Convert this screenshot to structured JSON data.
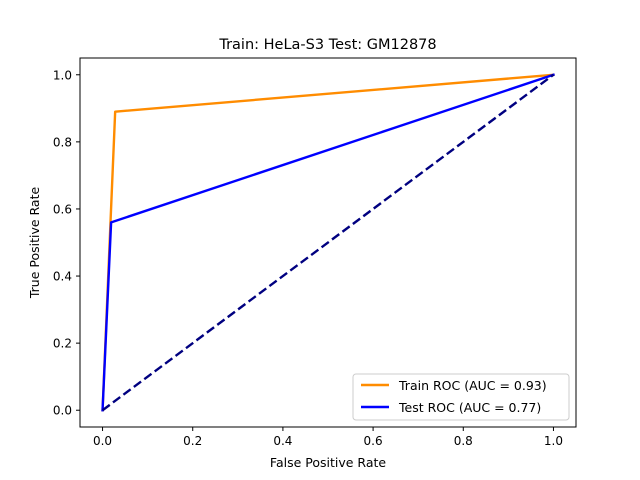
{
  "chart_data": {
    "type": "line",
    "title": "Train: HeLa-S3   Test: GM12878",
    "xlabel": "False Positive Rate",
    "ylabel": "True Positive Rate",
    "xlim": [
      -0.05,
      1.05
    ],
    "ylim": [
      -0.05,
      1.05
    ],
    "x_ticks": [
      "0.0",
      "0.2",
      "0.4",
      "0.6",
      "0.8",
      "1.0"
    ],
    "y_ticks": [
      "0.0",
      "0.2",
      "0.4",
      "0.6",
      "0.8",
      "1.0"
    ],
    "grid": false,
    "legend_position": "lower-right",
    "series": [
      {
        "name": "Train ROC (AUC = 0.93)",
        "color": "#ff8c00",
        "style": "solid",
        "x": [
          0.0,
          0.028,
          1.0
        ],
        "y": [
          0.0,
          0.89,
          1.0
        ]
      },
      {
        "name": "Test ROC (AUC = 0.77)",
        "color": "#0000ff",
        "style": "solid",
        "x": [
          0.0,
          0.019,
          1.0
        ],
        "y": [
          0.0,
          0.56,
          1.0
        ]
      },
      {
        "color": "#000080",
        "style": "dashed",
        "x": [
          0.0,
          1.0
        ],
        "y": [
          0.0,
          1.0
        ]
      }
    ]
  }
}
